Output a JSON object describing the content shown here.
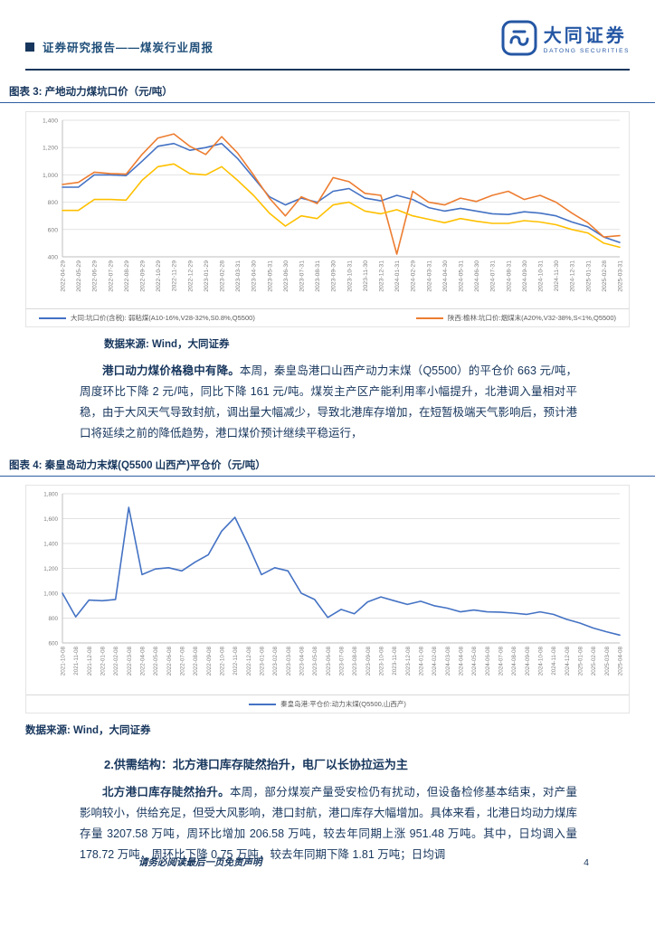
{
  "colors": {
    "navy": "#17365d",
    "brand_blue": "#2456a4",
    "line_blue": "#4472c4",
    "line_orange": "#ed7d31",
    "line_yellow": "#ffc000"
  },
  "header": {
    "title": "证券研究报告——煤炭行业周报",
    "brand": {
      "name_cn": "大同证券",
      "name_en": "DATONG SECURITIES"
    }
  },
  "figures": {
    "fig3": {
      "caption": "图表 3: 产地动力煤坑口价（元/吨）",
      "source": "数据来源: Wind，大同证券"
    },
    "fig4": {
      "caption": "图表 4: 秦皇岛动力末煤(Q5500 山西产)平仓价（元/吨）",
      "source": "数据来源: Wind，大同证券"
    }
  },
  "paragraphs": {
    "p1": {
      "lead": "港口动力煤价格稳中有降。",
      "body": "本周，秦皇岛港口山西产动力末煤（Q5500）的平仓价 663 元/吨，周度环比下降 2 元/吨，同比下降 161 元/吨。煤炭主产区产能利用率小幅提升，北港调入量相对平稳，由于大风天气导致封航，调出量大幅减少，导致北港库存增加，在短暂极端天气影响后，预计港口将延续之前的降低趋势，港口煤价预计继续平稳运行，"
    },
    "p2": {
      "lead": "北方港口库存陡然抬升。",
      "body": "本周，部分煤炭产量受安检仍有扰动，但设备检修基本结束，对产量影响较小，供给充足，但受大风影响，港口封航，港口库存大幅增加。具体来看，北港日均动力煤库存量 3207.58 万吨，周环比增加 206.58 万吨，较去年同期上涨 951.48 万吨。其中，日均调入量 178.72 万吨，周环比下降 0.75 万吨，较去年同期下降 1.81 万吨；日均调"
    }
  },
  "section2": {
    "heading": "2.供需结构：北方港口库存陡然抬升，电厂以长协拉运为主"
  },
  "footer": {
    "disclaimer": "请务必阅读最后一页免责声明",
    "page_number": "4"
  },
  "chart_data": [
    {
      "type": "line",
      "title": "产地动力煤坑口价（元/吨）",
      "ylim": [
        400,
        1400
      ],
      "yticks": [
        400,
        600,
        800,
        1000,
        1200,
        1400
      ],
      "grid": true,
      "legend_position": "bottom",
      "x": [
        "2022-04-29",
        "2022-05-29",
        "2022-06-29",
        "2022-07-29",
        "2022-08-29",
        "2022-09-29",
        "2022-10-29",
        "2022-11-29",
        "2022-12-29",
        "2023-01-29",
        "2023-02-28",
        "2023-03-31",
        "2023-04-30",
        "2023-05-31",
        "2023-06-30",
        "2023-07-31",
        "2023-08-31",
        "2023-09-30",
        "2023-10-31",
        "2023-11-30",
        "2023-12-31",
        "2024-01-31",
        "2024-02-29",
        "2024-03-31",
        "2024-04-30",
        "2024-05-31",
        "2024-06-30",
        "2024-07-31",
        "2024-08-31",
        "2024-09-30",
        "2024-10-31",
        "2024-11-30",
        "2024-12-31",
        "2025-01-31",
        "2025-02-28",
        "2025-03-31"
      ],
      "series": [
        {
          "name": "大同:坑口价(含税): 弱粘煤(A10-16%,V28-32%,S0.8%,Q5500)",
          "color": "#4472c4",
          "values": [
            910,
            910,
            1000,
            1000,
            995,
            1100,
            1210,
            1230,
            1180,
            1200,
            1230,
            1120,
            980,
            840,
            780,
            830,
            800,
            880,
            900,
            830,
            810,
            850,
            820,
            760,
            735,
            755,
            735,
            715,
            710,
            730,
            720,
            700,
            655,
            620,
            545,
            505
          ]
        },
        {
          "name": "陕西:榆林:坑口价:烟煤末(A20%,V32-38%,S<1%,Q5500)",
          "color": "#ed7d31",
          "values": [
            930,
            945,
            1020,
            1010,
            1005,
            1150,
            1270,
            1300,
            1210,
            1150,
            1280,
            1160,
            1000,
            830,
            700,
            840,
            790,
            980,
            950,
            865,
            850,
            420,
            880,
            800,
            780,
            830,
            805,
            850,
            880,
            820,
            850,
            800,
            720,
            650,
            545,
            555
          ]
        },
        {
          "name": "",
          "color": "#ffc000",
          "values": [
            740,
            740,
            820,
            820,
            815,
            960,
            1060,
            1080,
            1010,
            1000,
            1060,
            960,
            850,
            720,
            625,
            700,
            680,
            780,
            800,
            735,
            715,
            745,
            700,
            675,
            650,
            680,
            660,
            645,
            645,
            665,
            655,
            635,
            600,
            575,
            500,
            470
          ]
        }
      ]
    },
    {
      "type": "line",
      "title": "秦皇岛动力末煤(Q5500 山西产)平仓价（元/吨）",
      "ylim": [
        600,
        1800
      ],
      "yticks": [
        600,
        800,
        1000,
        1200,
        1400,
        1600,
        1800
      ],
      "grid": true,
      "legend_position": "bottom",
      "x": [
        "2021-10-08",
        "2021-11-08",
        "2021-12-08",
        "2022-01-08",
        "2022-02-08",
        "2022-03-08",
        "2022-04-08",
        "2022-05-08",
        "2022-06-08",
        "2022-07-08",
        "2022-08-08",
        "2022-09-08",
        "2022-10-08",
        "2022-11-08",
        "2022-12-08",
        "2023-01-08",
        "2023-02-08",
        "2023-03-08",
        "2023-04-08",
        "2023-05-08",
        "2023-06-08",
        "2023-07-08",
        "2023-08-08",
        "2023-09-08",
        "2023-10-08",
        "2023-11-08",
        "2023-12-08",
        "2024-01-08",
        "2024-02-08",
        "2024-03-08",
        "2024-04-08",
        "2024-05-08",
        "2024-06-08",
        "2024-07-08",
        "2024-08-08",
        "2024-09-08",
        "2024-10-08",
        "2024-11-08",
        "2024-12-08",
        "2025-01-08",
        "2025-02-08",
        "2025-03-08",
        "2025-04-08"
      ],
      "series": [
        {
          "name": "秦皇岛港:平仓价:动力末煤(Q5500,山西产)",
          "color": "#4472c4",
          "values": [
            1000,
            810,
            945,
            940,
            950,
            1690,
            1150,
            1195,
            1205,
            1180,
            1250,
            1310,
            1500,
            1610,
            1390,
            1150,
            1205,
            1180,
            1000,
            950,
            805,
            870,
            835,
            930,
            970,
            940,
            910,
            935,
            900,
            880,
            850,
            865,
            850,
            848,
            840,
            830,
            850,
            830,
            790,
            760,
            720,
            690,
            663
          ]
        }
      ]
    }
  ]
}
